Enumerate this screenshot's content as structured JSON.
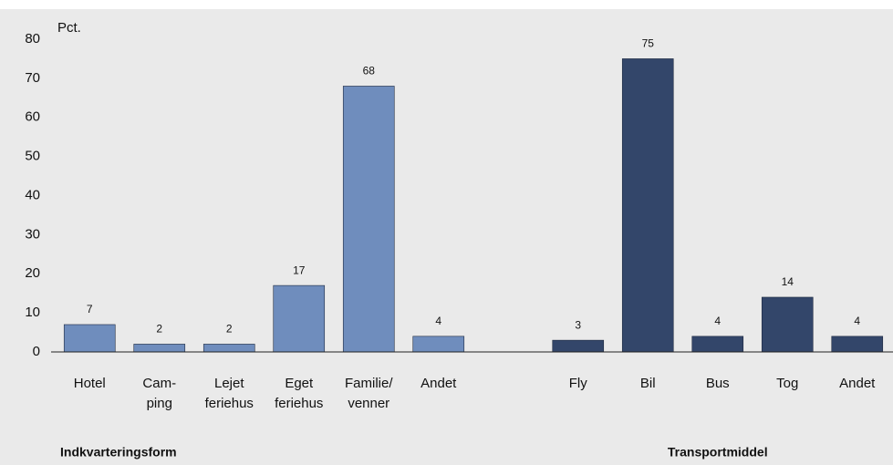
{
  "chart_data": {
    "type": "bar",
    "y_unit": "Pct.",
    "categories": [
      [
        "Hotel"
      ],
      [
        "Cam-",
        "ping"
      ],
      [
        "Lejet",
        "feriehus"
      ],
      [
        "Eget",
        "feriehus"
      ],
      [
        "Familie/",
        "venner"
      ],
      [
        "Andet"
      ],
      null,
      [
        "Fly"
      ],
      [
        "Bil"
      ],
      [
        "Bus"
      ],
      [
        "Tog"
      ],
      [
        "Andet"
      ]
    ],
    "values": [
      7,
      2,
      2,
      17,
      68,
      4,
      null,
      3,
      75,
      4,
      14,
      4
    ],
    "colors": [
      "#6f8dbd",
      "#6f8dbd",
      "#6f8dbd",
      "#6f8dbd",
      "#6f8dbd",
      "#6f8dbd",
      null,
      "#33466a",
      "#33466a",
      "#33466a",
      "#33466a",
      "#33466a"
    ],
    "groups": [
      {
        "label": "Indkvarteringsform",
        "first": 0,
        "last": 5
      },
      {
        "label": "Transportmiddel",
        "first": 7,
        "last": 11
      }
    ],
    "ylim": [
      0,
      80
    ],
    "yticks": [
      0,
      10,
      20,
      30,
      40,
      50,
      60,
      70,
      80
    ]
  }
}
